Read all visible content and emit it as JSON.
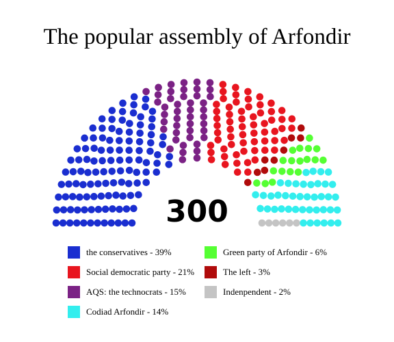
{
  "chart_data": {
    "type": "parliament",
    "title": "The popular assembly of Arfondir",
    "total_label": "300",
    "total": 300,
    "parties": [
      {
        "label": "the conservatives - 39%",
        "seats": 117,
        "color": "#1a2ed0"
      },
      {
        "label": "AQS: the technocrats - 15%",
        "seats": 45,
        "color": "#7b2285"
      },
      {
        "label": "Social democratic party - 21%",
        "seats": 63,
        "color": "#e8151f"
      },
      {
        "label": "The left - 3%",
        "seats": 9,
        "color": "#b00b0b"
      },
      {
        "label": "Green party of Arfondir - 6%",
        "seats": 18,
        "color": "#55ff33"
      },
      {
        "label": "Codiad Arfondir - 14%",
        "seats": 42,
        "color": "#33eeee"
      },
      {
        "label": "Indenpendent - 2%",
        "seats": 6,
        "color": "#c4c4c4"
      }
    ],
    "legend": [
      {
        "label": "the conservatives - 39%",
        "color": "#1a2ed0"
      },
      {
        "label": "Social democratic party - 21%",
        "color": "#e8151f"
      },
      {
        "label": "AQS: the technocrats - 15%",
        "color": "#7b2285"
      },
      {
        "label": "Codiad Arfondir - 14%",
        "color": "#33eeee"
      },
      {
        "label": "Green party of Arfondir - 6%",
        "color": "#55ff33"
      },
      {
        "label": "The left - 3%",
        "color": "#b00b0b"
      },
      {
        "label": "Indenpendent - 2%",
        "color": "#c4c4c4"
      }
    ]
  }
}
